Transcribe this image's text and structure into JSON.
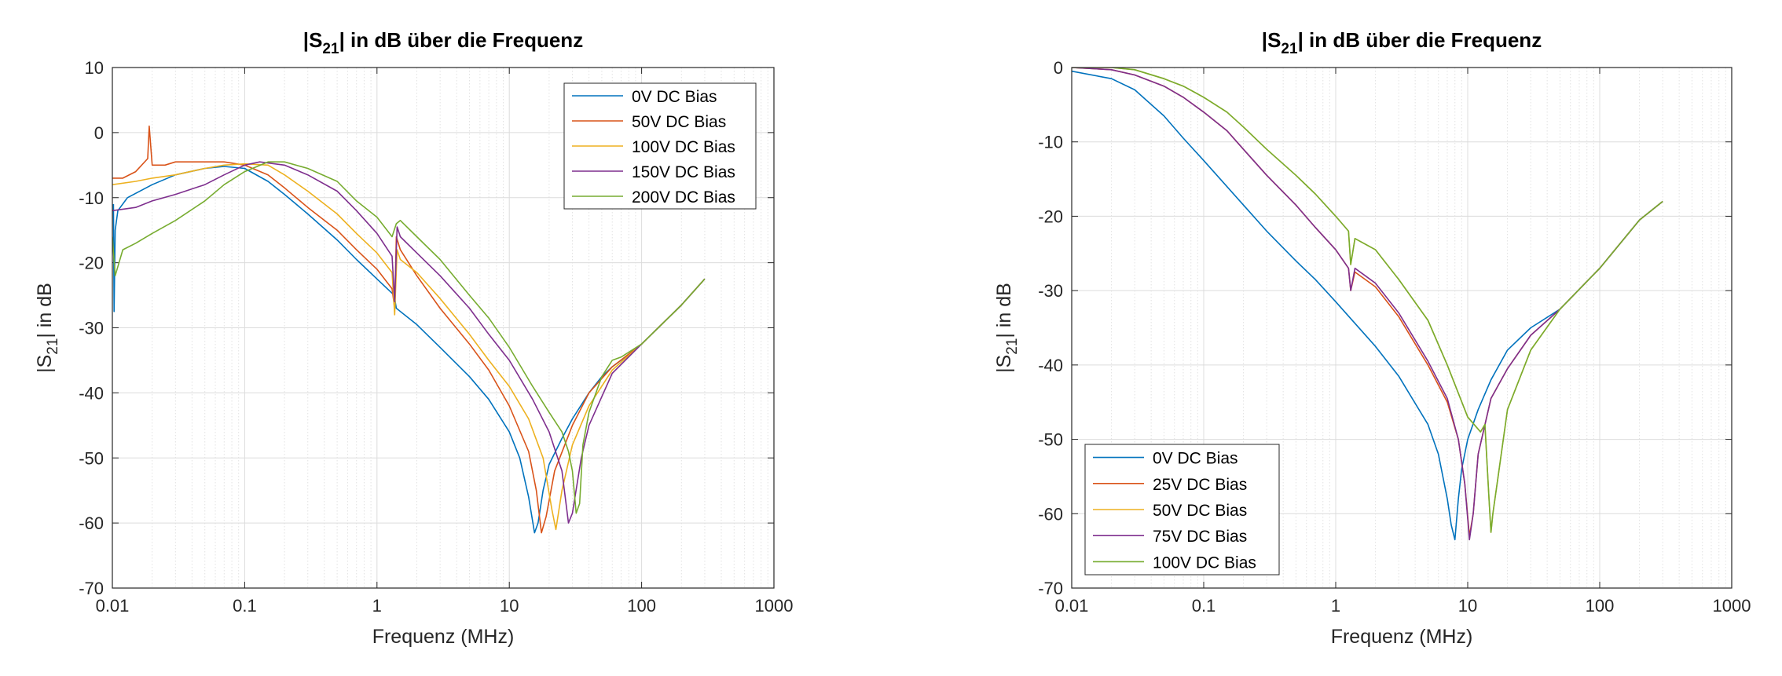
{
  "chart_data": [
    {
      "type": "line",
      "title": "|S21| in dB über die Frequenz",
      "title_parts": {
        "pre": "|S",
        "sub": "21",
        "post": "| in dB über die Frequenz"
      },
      "xlabel": "Frequenz (MHz)",
      "ylabel": "|S21| in dB",
      "ylabel_parts": {
        "pre": "|S",
        "sub": "21",
        "post": "| in dB"
      },
      "x_scale": "log",
      "xlim": [
        0.01,
        1000
      ],
      "ylim": [
        -70,
        10
      ],
      "xticks": [
        0.01,
        0.1,
        1,
        10,
        100,
        1000
      ],
      "xtick_labels": [
        "0.01",
        "0.1",
        "1",
        "10",
        "100",
        "1000"
      ],
      "yticks": [
        10,
        0,
        -10,
        -20,
        -30,
        -40,
        -50,
        -60,
        -70
      ],
      "ytick_labels": [
        "10",
        "0",
        "-10",
        "-20",
        "-30",
        "-40",
        "-50",
        "-60",
        "-70"
      ],
      "grid": true,
      "legend_position": "top-right",
      "series": [
        {
          "name": "0V DC Bias",
          "color": "#0072BD",
          "x": [
            0.0102,
            0.0103,
            0.0105,
            0.011,
            0.013,
            0.02,
            0.03,
            0.05,
            0.07,
            0.1,
            0.15,
            0.2,
            0.3,
            0.5,
            0.7,
            1,
            1.35,
            1.4,
            2,
            3,
            5,
            7,
            10,
            12,
            14,
            15.5,
            16.5,
            18,
            20,
            25,
            30,
            40,
            50,
            60,
            70,
            100,
            150,
            200,
            300
          ],
          "y": [
            -11,
            -27.5,
            -15,
            -12,
            -10,
            -8,
            -6.5,
            -5.5,
            -5.2,
            -5.5,
            -7.5,
            -9.5,
            -12.5,
            -16.5,
            -19.5,
            -22.5,
            -25,
            -27,
            -29.5,
            -33,
            -37.5,
            -41,
            -46,
            -50,
            -56,
            -61.5,
            -60,
            -55,
            -51,
            -47,
            -44,
            -40,
            -37.5,
            -36,
            -35,
            -32.5,
            -29,
            -26.5,
            -22.5
          ]
        },
        {
          "name": "50V DC Bias",
          "color": "#D95319",
          "x": [
            0.01,
            0.012,
            0.015,
            0.0185,
            0.019,
            0.02,
            0.025,
            0.03,
            0.04,
            0.05,
            0.07,
            0.1,
            0.15,
            0.2,
            0.3,
            0.5,
            0.7,
            1,
            1.3,
            1.36,
            1.4,
            1.5,
            2,
            3,
            5,
            7,
            10,
            14,
            16,
            17.5,
            19,
            22,
            30,
            40,
            60,
            100,
            200,
            300
          ],
          "y": [
            -7,
            -7,
            -6,
            -4,
            1,
            -5,
            -5,
            -4.5,
            -4.5,
            -4.5,
            -4.5,
            -5,
            -6.5,
            -8.5,
            -11.5,
            -15,
            -18,
            -21,
            -24,
            -27,
            -16,
            -18,
            -22,
            -27,
            -32.5,
            -36.5,
            -42,
            -49,
            -55,
            -61.5,
            -59,
            -52,
            -45,
            -40,
            -36,
            -32.5,
            -26.5,
            -22.5
          ]
        },
        {
          "name": "100V DC Bias",
          "color": "#EDB120",
          "x": [
            0.01,
            0.015,
            0.02,
            0.03,
            0.05,
            0.07,
            0.1,
            0.15,
            0.2,
            0.3,
            0.5,
            0.7,
            1,
            1.3,
            1.36,
            1.42,
            1.5,
            2,
            3,
            5,
            7,
            10,
            14,
            18,
            21,
            22.5,
            25,
            30,
            40,
            60,
            100,
            200,
            300
          ],
          "y": [
            -8,
            -7.5,
            -7,
            -6.5,
            -5.5,
            -5,
            -4.8,
            -5,
            -6.5,
            -9,
            -12.5,
            -15.5,
            -18.5,
            -21.5,
            -28,
            -18,
            -19.5,
            -21.5,
            -25.5,
            -31,
            -35,
            -39,
            -44,
            -50,
            -58,
            -61,
            -55,
            -48,
            -42,
            -36.5,
            -32.5,
            -26.5,
            -22.5
          ]
        },
        {
          "name": "150V DC Bias",
          "color": "#7E2F8E",
          "x": [
            0.01,
            0.015,
            0.02,
            0.03,
            0.05,
            0.07,
            0.1,
            0.13,
            0.2,
            0.3,
            0.5,
            0.7,
            1,
            1.3,
            1.36,
            1.42,
            1.5,
            2,
            3,
            5,
            7,
            10,
            15,
            20,
            25,
            28,
            30,
            35,
            40,
            60,
            100,
            200,
            300
          ],
          "y": [
            -12,
            -11.5,
            -10.5,
            -9.5,
            -8,
            -6.5,
            -5,
            -4.5,
            -5,
            -6.5,
            -9,
            -12,
            -15.5,
            -19,
            -26,
            -14.5,
            -16,
            -18.5,
            -22,
            -27,
            -31,
            -35,
            -41,
            -46,
            -52,
            -60,
            -58.5,
            -50,
            -45,
            -37,
            -32.5,
            -26.5,
            -22.5
          ]
        },
        {
          "name": "200V DC Bias",
          "color": "#77AC30",
          "x": [
            0.01,
            0.0105,
            0.012,
            0.015,
            0.02,
            0.03,
            0.05,
            0.07,
            0.1,
            0.15,
            0.2,
            0.3,
            0.5,
            0.7,
            1,
            1.3,
            1.4,
            1.5,
            2,
            3,
            5,
            7,
            10,
            15,
            20,
            25,
            28,
            30,
            32,
            34,
            36,
            40,
            50,
            60,
            70,
            100,
            200,
            300
          ],
          "y": [
            -16,
            -22,
            -18,
            -17,
            -15.5,
            -13.5,
            -10.5,
            -8,
            -6,
            -4.5,
            -4.5,
            -5.5,
            -7.5,
            -10.5,
            -13,
            -16,
            -14,
            -13.5,
            -16,
            -19.5,
            -25,
            -28.5,
            -33,
            -39,
            -43,
            -46,
            -49,
            -52,
            -58.5,
            -57,
            -48,
            -43,
            -37.5,
            -35,
            -34.5,
            -32.5,
            -26.5,
            -22.5
          ]
        }
      ]
    },
    {
      "type": "line",
      "title": "|S21| in dB über die Frequenz",
      "title_parts": {
        "pre": "|S",
        "sub": "21",
        "post": "| in dB über die Frequenz"
      },
      "xlabel": "Frequenz (MHz)",
      "ylabel": "|S21| in dB",
      "ylabel_parts": {
        "pre": "|S",
        "sub": "21",
        "post": "| in dB"
      },
      "x_scale": "log",
      "xlim": [
        0.01,
        1000
      ],
      "ylim": [
        -70,
        0
      ],
      "xticks": [
        0.01,
        0.1,
        1,
        10,
        100,
        1000
      ],
      "xtick_labels": [
        "0.01",
        "0.1",
        "1",
        "10",
        "100",
        "1000"
      ],
      "yticks": [
        0,
        -10,
        -20,
        -30,
        -40,
        -50,
        -60,
        -70
      ],
      "ytick_labels": [
        "0",
        "-10",
        "-20",
        "-30",
        "-40",
        "-50",
        "-60",
        "-70"
      ],
      "grid": true,
      "legend_position": "bottom-left",
      "series": [
        {
          "name": "0V DC Bias",
          "color": "#0072BD",
          "x": [
            0.01,
            0.02,
            0.03,
            0.05,
            0.07,
            0.1,
            0.2,
            0.3,
            0.5,
            0.7,
            1,
            2,
            3,
            5,
            6,
            7,
            7.5,
            8,
            8.5,
            9,
            10,
            12,
            15,
            20,
            30,
            50,
            100,
            200,
            300
          ],
          "y": [
            -0.5,
            -1.5,
            -3,
            -6.5,
            -9.5,
            -12.5,
            -18.5,
            -22,
            -26,
            -28.5,
            -31.5,
            -37.5,
            -41.5,
            -48,
            -52,
            -58,
            -61.5,
            -63.5,
            -58,
            -54,
            -50,
            -46,
            -42,
            -38,
            -35,
            -32.5,
            -27,
            -20.5,
            -18
          ]
        },
        {
          "name": "25V DC Bias",
          "color": "#D95319",
          "x": [
            0.01,
            0.02,
            0.03,
            0.05,
            0.07,
            0.1,
            0.15,
            0.2,
            0.3,
            0.5,
            0.7,
            1,
            1.25,
            1.3,
            1.4,
            2,
            3,
            5,
            7,
            8.5,
            9.5,
            10.3,
            11,
            12,
            15,
            20,
            30,
            50,
            100,
            200,
            300
          ],
          "y": [
            0,
            -0.3,
            -1,
            -2.5,
            -4,
            -6,
            -8.5,
            -11,
            -14.5,
            -18.5,
            -21.5,
            -24.5,
            -27,
            -30,
            -27.5,
            -29.5,
            -33.5,
            -40,
            -45,
            -50,
            -56,
            -63,
            -60,
            -52,
            -44.5,
            -40.5,
            -36,
            -32.5,
            -27,
            -20.5,
            -18
          ]
        },
        {
          "name": "50V DC Bias",
          "color": "#EDB120",
          "x": [
            0.01,
            0.02,
            0.03,
            0.05,
            0.07,
            0.1,
            0.15,
            0.2,
            0.3,
            0.5,
            0.7,
            1,
            1.25,
            1.3,
            1.4,
            2,
            3,
            5,
            7,
            10,
            12.5,
            13.5,
            14.5,
            15,
            15.5,
            17,
            20,
            30,
            50,
            100,
            200,
            300
          ],
          "y": [
            0,
            0,
            -0.3,
            -1.5,
            -2.5,
            -4,
            -6,
            -8,
            -11,
            -14.5,
            -17,
            -20,
            -22,
            -26.5,
            -23,
            -24.5,
            -28.5,
            -34,
            -40,
            -47,
            -49,
            -48,
            -58,
            -62.5,
            -60,
            -55,
            -46,
            -38,
            -32.5,
            -27,
            -20.5,
            -18
          ]
        },
        {
          "name": "75V DC Bias",
          "color": "#7E2F8E",
          "x": [
            0.01,
            0.02,
            0.03,
            0.05,
            0.07,
            0.1,
            0.15,
            0.2,
            0.3,
            0.5,
            0.7,
            1,
            1.25,
            1.3,
            1.4,
            2,
            3,
            5,
            7,
            8.5,
            9.5,
            10.3,
            11,
            12,
            15,
            20,
            30,
            50,
            100,
            200,
            300
          ],
          "y": [
            0,
            -0.3,
            -1,
            -2.5,
            -4,
            -6,
            -8.5,
            -11,
            -14.5,
            -18.5,
            -21.5,
            -24.5,
            -27,
            -30,
            -27,
            -29,
            -33,
            -39.5,
            -44.5,
            -50,
            -56,
            -63.5,
            -60,
            -52,
            -44.5,
            -40.5,
            -36,
            -32.5,
            -27,
            -20.5,
            -18
          ]
        },
        {
          "name": "100V DC Bias",
          "color": "#77AC30",
          "x": [
            0.01,
            0.02,
            0.03,
            0.05,
            0.07,
            0.1,
            0.15,
            0.2,
            0.3,
            0.5,
            0.7,
            1,
            1.25,
            1.3,
            1.4,
            2,
            3,
            5,
            7,
            10,
            12.5,
            13.5,
            14.5,
            15,
            15.5,
            17,
            20,
            30,
            50,
            100,
            200,
            300
          ],
          "y": [
            0,
            0,
            -0.3,
            -1.5,
            -2.5,
            -4,
            -6,
            -8,
            -11,
            -14.5,
            -17,
            -20,
            -22,
            -26.5,
            -23,
            -24.5,
            -28.5,
            -34,
            -40,
            -47,
            -49,
            -48,
            -58,
            -62.5,
            -60,
            -55,
            -46,
            -38,
            -32.5,
            -27,
            -20.5,
            -18
          ]
        }
      ]
    }
  ]
}
